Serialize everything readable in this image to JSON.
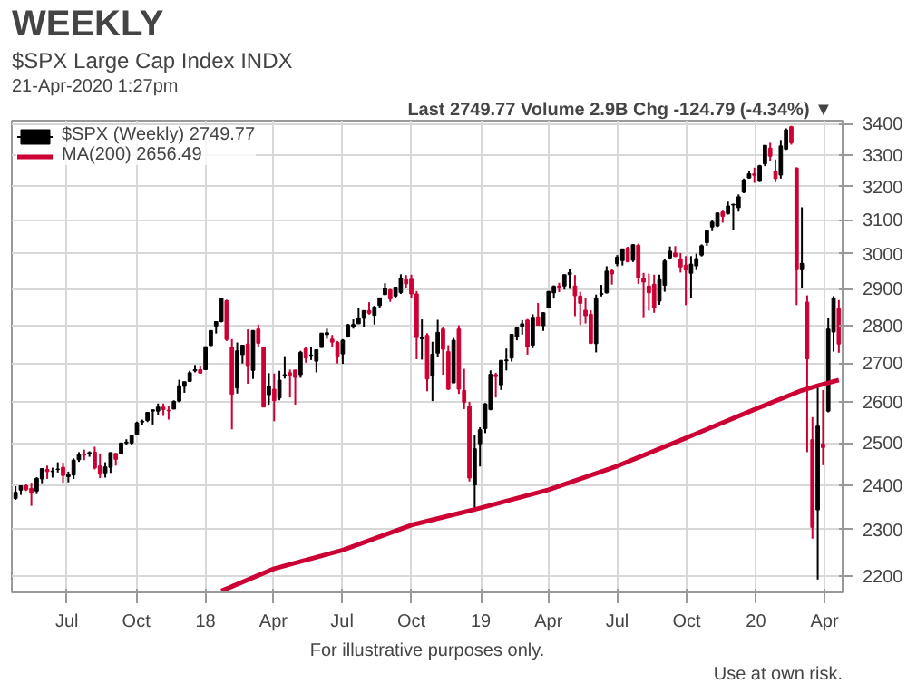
{
  "chart_data": {
    "type": "candlestick",
    "title": "WEEKLY",
    "subtitle": "$SPX Large Cap Index INDX",
    "annotations": [
      "21-Apr-2020 1:27pm",
      "Last 2749.77  Volume 2.9B  Chg -124.79 (-4.34%) ▼",
      "For illustrative purposes only.",
      "Use at own risk."
    ],
    "log": true,
    "grid": true,
    "legend": "top left",
    "xlim": [
      "2017-04-19",
      "2020-04-25"
    ],
    "xticks": [
      {
        "value": "2017-07-01",
        "label": "Jul"
      },
      {
        "value": "2017-10-01",
        "label": "Oct"
      },
      {
        "value": "2018-01-01",
        "label": "18"
      },
      {
        "value": "2018-04-01",
        "label": "Apr"
      },
      {
        "value": "2018-07-01",
        "label": "Jul"
      },
      {
        "value": "2018-10-01",
        "label": "Oct"
      },
      {
        "value": "2019-01-01",
        "label": "19"
      },
      {
        "value": "2019-04-01",
        "label": "Apr"
      },
      {
        "value": "2019-07-01",
        "label": "Jul"
      },
      {
        "value": "2019-10-01",
        "label": "Oct"
      },
      {
        "value": "2020-01-01",
        "label": "20"
      },
      {
        "value": "2020-04-01",
        "label": "Apr"
      }
    ],
    "ylim": [
      2165,
      3410
    ],
    "yticks": [
      2200,
      2300,
      2400,
      2500,
      2600,
      2700,
      2800,
      2900,
      3000,
      3100,
      3200,
      3300,
      3400
    ],
    "series": [
      {
        "name": "$SPX (Weekly) 2749.77",
        "x": [
          "2017-04-24",
          "2017-05-01",
          "2017-05-08",
          "2017-05-15",
          "2017-05-22",
          "2017-05-29",
          "2017-06-05",
          "2017-06-12",
          "2017-06-19",
          "2017-06-26",
          "2017-07-03",
          "2017-07-10",
          "2017-07-17",
          "2017-07-24",
          "2017-07-31",
          "2017-08-07",
          "2017-08-14",
          "2017-08-21",
          "2017-08-28",
          "2017-09-04",
          "2017-09-11",
          "2017-09-18",
          "2017-09-25",
          "2017-10-02",
          "2017-10-09",
          "2017-10-16",
          "2017-10-23",
          "2017-10-30",
          "2017-11-06",
          "2017-11-13",
          "2017-11-20",
          "2017-11-27",
          "2017-12-04",
          "2017-12-11",
          "2017-12-18",
          "2017-12-25",
          "2018-01-01",
          "2018-01-08",
          "2018-01-15",
          "2018-01-22",
          "2018-01-29",
          "2018-02-05",
          "2018-02-12",
          "2018-02-19",
          "2018-02-26",
          "2018-03-05",
          "2018-03-12",
          "2018-03-19",
          "2018-03-26",
          "2018-04-02",
          "2018-04-09",
          "2018-04-16",
          "2018-04-23",
          "2018-04-30",
          "2018-05-07",
          "2018-05-14",
          "2018-05-21",
          "2018-05-28",
          "2018-06-04",
          "2018-06-11",
          "2018-06-18",
          "2018-06-25",
          "2018-07-02",
          "2018-07-09",
          "2018-07-16",
          "2018-07-23",
          "2018-07-30",
          "2018-08-06",
          "2018-08-13",
          "2018-08-20",
          "2018-08-27",
          "2018-09-03",
          "2018-09-10",
          "2018-09-17",
          "2018-09-24",
          "2018-10-01",
          "2018-10-08",
          "2018-10-15",
          "2018-10-22",
          "2018-10-29",
          "2018-11-05",
          "2018-11-12",
          "2018-11-19",
          "2018-11-26",
          "2018-12-03",
          "2018-12-10",
          "2018-12-17",
          "2018-12-24",
          "2018-12-31",
          "2019-01-07",
          "2019-01-14",
          "2019-01-21",
          "2019-01-28",
          "2019-02-04",
          "2019-02-11",
          "2019-02-18",
          "2019-02-25",
          "2019-03-04",
          "2019-03-11",
          "2019-03-18",
          "2019-03-25",
          "2019-04-01",
          "2019-04-08",
          "2019-04-15",
          "2019-04-22",
          "2019-04-29",
          "2019-05-06",
          "2019-05-13",
          "2019-05-20",
          "2019-05-27",
          "2019-06-03",
          "2019-06-10",
          "2019-06-17",
          "2019-06-24",
          "2019-07-01",
          "2019-07-08",
          "2019-07-15",
          "2019-07-22",
          "2019-07-29",
          "2019-08-05",
          "2019-08-12",
          "2019-08-19",
          "2019-08-26",
          "2019-09-02",
          "2019-09-09",
          "2019-09-16",
          "2019-09-23",
          "2019-09-30",
          "2019-10-07",
          "2019-10-14",
          "2019-10-21",
          "2019-10-28",
          "2019-11-04",
          "2019-11-11",
          "2019-11-18",
          "2019-11-25",
          "2019-12-02",
          "2019-12-09",
          "2019-12-16",
          "2019-12-23",
          "2019-12-30",
          "2020-01-06",
          "2020-01-13",
          "2020-01-20",
          "2020-01-27",
          "2020-02-03",
          "2020-02-10",
          "2020-02-17",
          "2020-02-24",
          "2020-03-02",
          "2020-03-09",
          "2020-03-16",
          "2020-03-23",
          "2020-03-30",
          "2020-04-06",
          "2020-04-13",
          "2020-04-20"
        ],
        "ohlc": [
          [
            2370,
            2398,
            2367,
            2384
          ],
          [
            2389,
            2400,
            2378,
            2399
          ],
          [
            2399,
            2404,
            2387,
            2390
          ],
          [
            2393,
            2406,
            2353,
            2382
          ],
          [
            2387,
            2419,
            2380,
            2416
          ],
          [
            2415,
            2440,
            2405,
            2439
          ],
          [
            2437,
            2446,
            2415,
            2432
          ],
          [
            2432,
            2441,
            2418,
            2433
          ],
          [
            2437,
            2454,
            2430,
            2438
          ],
          [
            2442,
            2453,
            2406,
            2423
          ],
          [
            2420,
            2432,
            2407,
            2425
          ],
          [
            2424,
            2463,
            2415,
            2459
          ],
          [
            2460,
            2478,
            2455,
            2472
          ],
          [
            2473,
            2484,
            2459,
            2471
          ],
          [
            2475,
            2480,
            2467,
            2477
          ],
          [
            2478,
            2491,
            2437,
            2441
          ],
          [
            2445,
            2475,
            2417,
            2426
          ],
          [
            2429,
            2454,
            2418,
            2443
          ],
          [
            2442,
            2477,
            2429,
            2477
          ],
          [
            2475,
            2475,
            2446,
            2461
          ],
          [
            2474,
            2500,
            2474,
            2500
          ],
          [
            2500,
            2509,
            2496,
            2502
          ],
          [
            2500,
            2520,
            2495,
            2519
          ],
          [
            2521,
            2552,
            2520,
            2549
          ],
          [
            2551,
            2557,
            2544,
            2553
          ],
          [
            2555,
            2576,
            2551,
            2575
          ],
          [
            2578,
            2582,
            2545,
            2581
          ],
          [
            2578,
            2597,
            2568,
            2588
          ],
          [
            2588,
            2597,
            2566,
            2582
          ],
          [
            2580,
            2590,
            2557,
            2579
          ],
          [
            2583,
            2605,
            2583,
            2602
          ],
          [
            2603,
            2657,
            2600,
            2642
          ],
          [
            2640,
            2652,
            2624,
            2652
          ],
          [
            2653,
            2680,
            2652,
            2675
          ],
          [
            2680,
            2695,
            2676,
            2683
          ],
          [
            2683,
            2692,
            2673,
            2674
          ],
          [
            2683,
            2743,
            2683,
            2743
          ],
          [
            2746,
            2787,
            2745,
            2786
          ],
          [
            2798,
            2811,
            2778,
            2810
          ],
          [
            2810,
            2873,
            2808,
            2873
          ],
          [
            2867,
            2870,
            2758,
            2762
          ],
          [
            2741,
            2763,
            2533,
            2620
          ],
          [
            2636,
            2754,
            2622,
            2732
          ],
          [
            2722,
            2748,
            2699,
            2747
          ],
          [
            2750,
            2789,
            2647,
            2691
          ],
          [
            2681,
            2787,
            2659,
            2786
          ],
          [
            2790,
            2802,
            2743,
            2752
          ],
          [
            2741,
            2741,
            2588,
            2588
          ],
          [
            2619,
            2674,
            2594,
            2641
          ],
          [
            2633,
            2673,
            2553,
            2604
          ],
          [
            2611,
            2680,
            2605,
            2656
          ],
          [
            2668,
            2718,
            2660,
            2670
          ],
          [
            2675,
            2683,
            2612,
            2669
          ],
          [
            2682,
            2682,
            2594,
            2663
          ],
          [
            2670,
            2732,
            2662,
            2728
          ],
          [
            2738,
            2742,
            2701,
            2713
          ],
          [
            2720,
            2742,
            2708,
            2721
          ],
          [
            2705,
            2736,
            2676,
            2735
          ],
          [
            2741,
            2779,
            2740,
            2779
          ],
          [
            2775,
            2791,
            2764,
            2780
          ],
          [
            2763,
            2774,
            2742,
            2755
          ],
          [
            2754,
            2758,
            2699,
            2718
          ],
          [
            2724,
            2763,
            2698,
            2760
          ],
          [
            2769,
            2804,
            2767,
            2801
          ],
          [
            2797,
            2816,
            2791,
            2802
          ],
          [
            2804,
            2848,
            2804,
            2819
          ],
          [
            2819,
            2841,
            2796,
            2840
          ],
          [
            2840,
            2863,
            2829,
            2833
          ],
          [
            2827,
            2853,
            2802,
            2850
          ],
          [
            2854,
            2876,
            2846,
            2875
          ],
          [
            2884,
            2916,
            2884,
            2902
          ],
          [
            2897,
            2900,
            2864,
            2872
          ],
          [
            2880,
            2906,
            2875,
            2905
          ],
          [
            2890,
            2941,
            2886,
            2930
          ],
          [
            2926,
            2939,
            2903,
            2914
          ],
          [
            2927,
            2940,
            2874,
            2886
          ],
          [
            2886,
            2894,
            2710,
            2767
          ],
          [
            2764,
            2816,
            2709,
            2768
          ],
          [
            2773,
            2779,
            2628,
            2659
          ],
          [
            2667,
            2756,
            2603,
            2723
          ],
          [
            2726,
            2815,
            2717,
            2781
          ],
          [
            2790,
            2796,
            2670,
            2736
          ],
          [
            2730,
            2747,
            2631,
            2633
          ],
          [
            2649,
            2766,
            2649,
            2760
          ],
          [
            2790,
            2800,
            2621,
            2633
          ],
          [
            2630,
            2685,
            2583,
            2600
          ],
          [
            2590,
            2601,
            2409,
            2417
          ],
          [
            2401,
            2520,
            2347,
            2486
          ],
          [
            2498,
            2538,
            2444,
            2532
          ],
          [
            2535,
            2598,
            2524,
            2596
          ],
          [
            2582,
            2681,
            2580,
            2671
          ],
          [
            2670,
            2675,
            2612,
            2665
          ],
          [
            2644,
            2708,
            2631,
            2707
          ],
          [
            2706,
            2738,
            2681,
            2708
          ],
          [
            2713,
            2777,
            2704,
            2776
          ],
          [
            2769,
            2795,
            2760,
            2793
          ],
          [
            2797,
            2814,
            2775,
            2804
          ],
          [
            2814,
            2817,
            2722,
            2743
          ],
          [
            2747,
            2830,
            2739,
            2822
          ],
          [
            2823,
            2861,
            2800,
            2800
          ],
          [
            2799,
            2836,
            2785,
            2834
          ],
          [
            2848,
            2893,
            2848,
            2893
          ],
          [
            2889,
            2910,
            2873,
            2907
          ],
          [
            2908,
            2917,
            2891,
            2905
          ],
          [
            2908,
            2940,
            2898,
            2940
          ],
          [
            2940,
            2955,
            2900,
            2946
          ],
          [
            2908,
            2939,
            2825,
            2881
          ],
          [
            2880,
            2892,
            2801,
            2860
          ],
          [
            2841,
            2876,
            2805,
            2826
          ],
          [
            2830,
            2841,
            2750,
            2752
          ],
          [
            2751,
            2884,
            2728,
            2873
          ],
          [
            2885,
            2911,
            2879,
            2887
          ],
          [
            2889,
            2964,
            2887,
            2950
          ],
          [
            2951,
            2955,
            2912,
            2942
          ],
          [
            2971,
            2996,
            2964,
            2990
          ],
          [
            2980,
            3014,
            2966,
            3014
          ],
          [
            3017,
            3020,
            2975,
            2977
          ],
          [
            2981,
            3028,
            2976,
            3026
          ],
          [
            3024,
            3029,
            2914,
            2932
          ],
          [
            2930,
            2945,
            2822,
            2919
          ],
          [
            2908,
            2943,
            2840,
            2889
          ],
          [
            2913,
            2940,
            2834,
            2847
          ],
          [
            2866,
            2940,
            2856,
            2926
          ],
          [
            2910,
            2985,
            2892,
            2979
          ],
          [
            2988,
            3021,
            2985,
            3007
          ],
          [
            3002,
            3022,
            2990,
            2992
          ],
          [
            2984,
            3002,
            2946,
            2962
          ],
          [
            2967,
            2993,
            2855,
            2953
          ],
          [
            2944,
            2993,
            2874,
            2970
          ],
          [
            2965,
            3000,
            2953,
            2986
          ],
          [
            2996,
            3027,
            2992,
            3023
          ],
          [
            3032,
            3068,
            3023,
            3067
          ],
          [
            3078,
            3098,
            3066,
            3093
          ],
          [
            3081,
            3120,
            3078,
            3120
          ],
          [
            3123,
            3127,
            3091,
            3110
          ],
          [
            3118,
            3154,
            3115,
            3141
          ],
          [
            3144,
            3148,
            3070,
            3146
          ],
          [
            3136,
            3176,
            3124,
            3169
          ],
          [
            3183,
            3225,
            3180,
            3221
          ],
          [
            3227,
            3247,
            3225,
            3240
          ],
          [
            3240,
            3259,
            3212,
            3235
          ],
          [
            3217,
            3268,
            3214,
            3265
          ],
          [
            3271,
            3330,
            3264,
            3330
          ],
          [
            3321,
            3338,
            3280,
            3295
          ],
          [
            3248,
            3285,
            3214,
            3225
          ],
          [
            3236,
            3347,
            3225,
            3328
          ],
          [
            3318,
            3385,
            3315,
            3380
          ],
          [
            3390,
            3393,
            3332,
            3338
          ],
          [
            3258,
            3260,
            2855,
            2954
          ],
          [
            2954,
            3137,
            2901,
            2972
          ],
          [
            2863,
            2882,
            2478,
            2711
          ],
          [
            2508,
            2563,
            2280,
            2305
          ],
          [
            2344,
            2637,
            2192,
            2541
          ],
          [
            2498,
            2631,
            2447,
            2489
          ],
          [
            2578,
            2819,
            2575,
            2790
          ],
          [
            2782,
            2880,
            2730,
            2875
          ],
          [
            2845,
            2869,
            2727,
            2750
          ]
        ],
        "colors": [
          "#000000",
          "#000000",
          "#cc0033",
          "#cc0033",
          "#000000",
          "#000000",
          "#cc0033",
          "#000000",
          "#000000",
          "#cc0033",
          "#000000",
          "#000000",
          "#000000",
          "#cc0033",
          "#000000",
          "#cc0033",
          "#cc0033",
          "#000000",
          "#000000",
          "#cc0033",
          "#000000",
          "#000000",
          "#000000",
          "#000000",
          "#000000",
          "#000000",
          "#000000",
          "#000000",
          "#cc0033",
          "#cc0033",
          "#000000",
          "#000000",
          "#000000",
          "#000000",
          "#000000",
          "#cc0033",
          "#000000",
          "#000000",
          "#000000",
          "#000000",
          "#cc0033",
          "#cc0033",
          "#000000",
          "#000000",
          "#cc0033",
          "#000000",
          "#cc0033",
          "#cc0033",
          "#000000",
          "#cc0033",
          "#000000",
          "#000000",
          "#cc0033",
          "#cc0033",
          "#000000",
          "#cc0033",
          "#000000",
          "#000000",
          "#000000",
          "#000000",
          "#cc0033",
          "#cc0033",
          "#000000",
          "#000000",
          "#000000",
          "#000000",
          "#000000",
          "#cc0033",
          "#000000",
          "#000000",
          "#000000",
          "#cc0033",
          "#000000",
          "#000000",
          "#cc0033",
          "#cc0033",
          "#cc0033",
          "#000000",
          "#cc0033",
          "#000000",
          "#000000",
          "#cc0033",
          "#cc0033",
          "#000000",
          "#cc0033",
          "#cc0033",
          "#cc0033",
          "#000000",
          "#000000",
          "#000000",
          "#000000",
          "#cc0033",
          "#000000",
          "#000000",
          "#000000",
          "#000000",
          "#000000",
          "#cc0033",
          "#000000",
          "#cc0033",
          "#000000",
          "#000000",
          "#000000",
          "#cc0033",
          "#000000",
          "#000000",
          "#cc0033",
          "#cc0033",
          "#cc0033",
          "#cc0033",
          "#000000",
          "#000000",
          "#000000",
          "#cc0033",
          "#000000",
          "#000000",
          "#cc0033",
          "#000000",
          "#cc0033",
          "#cc0033",
          "#cc0033",
          "#cc0033",
          "#000000",
          "#000000",
          "#000000",
          "#cc0033",
          "#cc0033",
          "#cc0033",
          "#000000",
          "#000000",
          "#000000",
          "#000000",
          "#000000",
          "#000000",
          "#cc0033",
          "#000000",
          "#000000",
          "#000000",
          "#000000",
          "#000000",
          "#cc0033",
          "#000000",
          "#000000",
          "#cc0033",
          "#cc0033",
          "#000000",
          "#000000",
          "#cc0033",
          "#cc0033",
          "#000000",
          "#cc0033",
          "#cc0033",
          "#000000",
          "#cc0033",
          "#000000",
          "#000000",
          "#cc0033"
        ]
      },
      {
        "name": "MA(200) 2656.49",
        "type": "line",
        "color": "#cc0033",
        "x": [
          "2018-01-22",
          "2018-04-02",
          "2018-07-02",
          "2018-10-01",
          "2018-12-31",
          "2019-04-01",
          "2019-07-01",
          "2019-09-30",
          "2019-12-30",
          "2020-03-02",
          "2020-03-23",
          "2020-04-20"
        ],
        "values": [
          2168,
          2215,
          2255,
          2310,
          2348,
          2390,
          2445,
          2512,
          2582,
          2630,
          2642,
          2656.49
        ]
      }
    ]
  }
}
